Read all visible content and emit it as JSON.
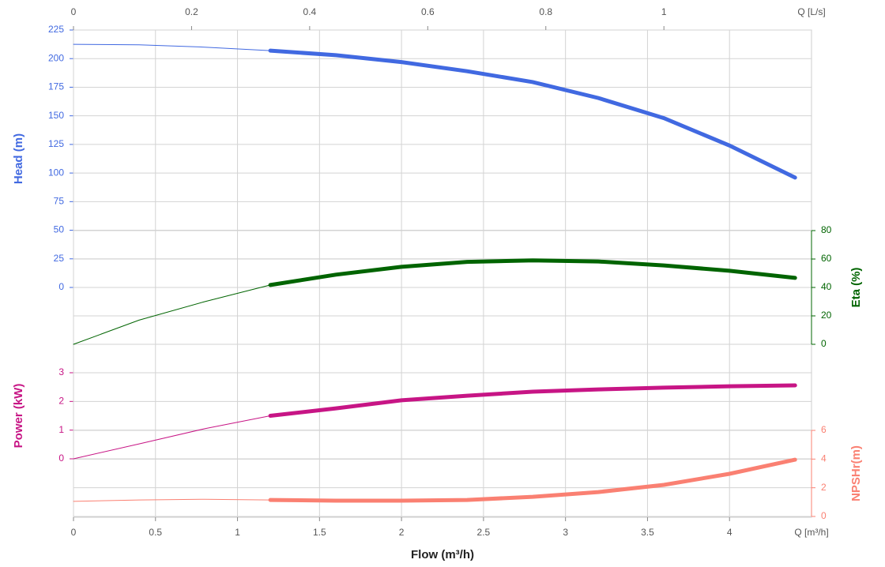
{
  "chart_data": {
    "type": "line",
    "x_title": "Flow (m³/h)",
    "x": [
      0,
      0.4,
      0.8,
      1.2,
      1.6,
      2.0,
      2.4,
      2.8,
      3.2,
      3.6,
      4.0,
      4.4
    ],
    "xlim": [
      0,
      4.5
    ],
    "xticks": [
      0,
      0.5,
      1,
      1.5,
      2,
      2.5,
      3,
      3.5,
      4
    ],
    "x_unit_label": "Q [m³/h]",
    "x2lim": [
      0,
      1.25
    ],
    "x2ticks": [
      0,
      0.2,
      0.4,
      0.6,
      0.8,
      1
    ],
    "x2_unit_label": "Q [L/s]",
    "grid": true,
    "y_axes": [
      {
        "title": "Head (m)",
        "side": "left",
        "color": "#4169e1",
        "ylim": [
          0,
          225
        ],
        "yticks": [
          0,
          25,
          50,
          75,
          100,
          125,
          150,
          175,
          200,
          225
        ]
      },
      {
        "title": "Eta (%)",
        "side": "right",
        "color": "#006400",
        "ylim": [
          0,
          80
        ],
        "yticks": [
          0,
          20,
          40,
          60,
          80
        ]
      },
      {
        "title": "Power (kW)",
        "side": "left",
        "color": "#c71585",
        "ylim": [
          0,
          3
        ],
        "yticks": [
          0,
          1,
          2,
          3
        ]
      },
      {
        "title": "NPSHr(m)",
        "side": "right",
        "color": "#fa8072",
        "ylim": [
          0,
          6
        ],
        "yticks": [
          0,
          2,
          4,
          6
        ]
      }
    ],
    "series": [
      {
        "axis": 0,
        "width": 1,
        "values": [
          212.5,
          212,
          210,
          207,
          null,
          null,
          null,
          null,
          null,
          null,
          null,
          null
        ]
      },
      {
        "axis": 0,
        "width": 5,
        "values": [
          null,
          null,
          null,
          207,
          203,
          197,
          189,
          179.5,
          165.6,
          148,
          124,
          96
        ]
      },
      {
        "axis": 1,
        "width": 1,
        "values": [
          0,
          17,
          30,
          41.7,
          null,
          null,
          null,
          null,
          null,
          null,
          null,
          null
        ]
      },
      {
        "axis": 1,
        "width": 5,
        "values": [
          null,
          null,
          null,
          41.7,
          49,
          54.5,
          58,
          59,
          58.3,
          55.5,
          51.7,
          46.7
        ]
      },
      {
        "axis": 2,
        "width": 1,
        "values": [
          0,
          0.52,
          1.05,
          1.5,
          null,
          null,
          null,
          null,
          null,
          null,
          null,
          null
        ]
      },
      {
        "axis": 2,
        "width": 5,
        "values": [
          null,
          null,
          null,
          1.5,
          1.76,
          2.04,
          2.2,
          2.34,
          2.42,
          2.48,
          2.53,
          2.56
        ]
      },
      {
        "axis": 3,
        "width": 1,
        "values": [
          1.05,
          1.15,
          1.2,
          1.15,
          null,
          null,
          null,
          null,
          null,
          null,
          null,
          null
        ]
      },
      {
        "axis": 3,
        "width": 5,
        "values": [
          null,
          null,
          null,
          1.15,
          1.1,
          1.1,
          1.15,
          1.37,
          1.7,
          2.2,
          2.97,
          3.96
        ]
      }
    ]
  }
}
